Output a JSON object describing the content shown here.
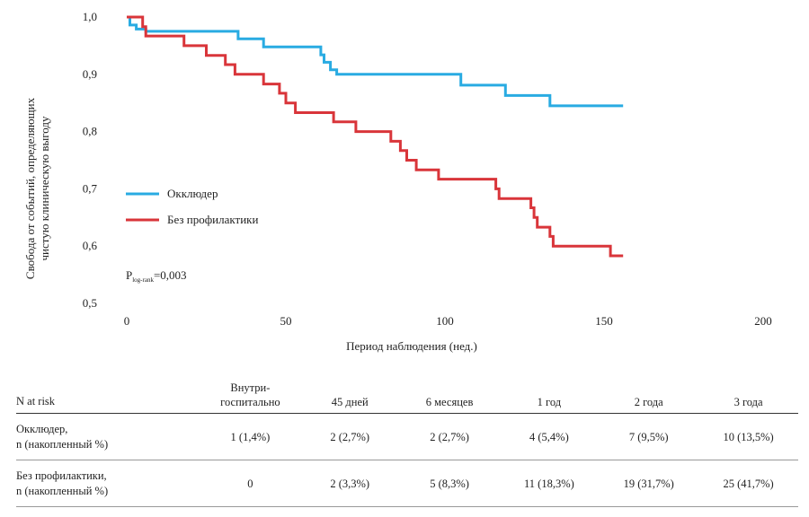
{
  "chart_data": {
    "type": "line",
    "subtype": "kaplan-meier step",
    "ylabel_line1": "Свобода от событий, определяющих",
    "ylabel_line2": "чистую клиническую выгоду",
    "xlabel": "Период наблюдения (нед.)",
    "xlim": [
      0,
      200
    ],
    "ylim": [
      0.5,
      1.0
    ],
    "x_ticks": [
      "0",
      "50",
      "100",
      "150",
      "200"
    ],
    "y_ticks": [
      "1,0",
      "0,9",
      "0,8",
      "0,7",
      "0,6",
      "0,5"
    ],
    "legend_position": "left-middle",
    "p_value": {
      "prefix": "P",
      "subscript": "log-rank",
      "value": "=0,003"
    },
    "series": [
      {
        "name": "Окклюдер",
        "color": "#29abe2",
        "x": [
          0,
          1,
          3,
          6,
          35,
          43,
          61,
          62,
          64,
          66,
          105,
          119,
          133,
          156
        ],
        "y": [
          1.0,
          0.986,
          0.979,
          0.975,
          0.962,
          0.948,
          0.934,
          0.921,
          0.908,
          0.9,
          0.881,
          0.863,
          0.845,
          0.845
        ]
      },
      {
        "name": "Без профилактики",
        "color": "#d9353a",
        "x": [
          0,
          5,
          6,
          18,
          25,
          31,
          34,
          43,
          48,
          50,
          53,
          65,
          72,
          83,
          86,
          88,
          91,
          98,
          116,
          117,
          118,
          127,
          128,
          129,
          130,
          133,
          134,
          152,
          156
        ],
        "y": [
          1.0,
          0.983,
          0.967,
          0.95,
          0.933,
          0.917,
          0.9,
          0.883,
          0.867,
          0.85,
          0.833,
          0.817,
          0.8,
          0.783,
          0.767,
          0.75,
          0.733,
          0.717,
          0.7,
          0.683,
          0.683,
          0.667,
          0.65,
          0.633,
          0.633,
          0.617,
          0.6,
          0.583,
          0.583
        ]
      }
    ]
  },
  "risk_table": {
    "header_label": "N at risk",
    "columns": [
      {
        "line1": "Внутри-",
        "line2": "госпитально"
      },
      {
        "line1": "",
        "line2": "45 дней"
      },
      {
        "line1": "",
        "line2": "6 месяцев"
      },
      {
        "line1": "",
        "line2": "1 год"
      },
      {
        "line1": "",
        "line2": "2 года"
      },
      {
        "line1": "",
        "line2": "3 года"
      }
    ],
    "rows": [
      {
        "label_line1": "Окклюдер,",
        "label_line2": "n (накопленный %)",
        "values": [
          "1 (1,4%)",
          "2 (2,7%)",
          "2 (2,7%)",
          "4 (5,4%)",
          "7 (9,5%)",
          "10 (13,5%)"
        ]
      },
      {
        "label_line1": "Без профилактики,",
        "label_line2": "n (накопленный %)",
        "values": [
          "0",
          "2 (3,3%)",
          "5 (8,3%)",
          "11 (18,3%)",
          "19 (31,7%)",
          "25 (41,7%)"
        ]
      }
    ]
  }
}
